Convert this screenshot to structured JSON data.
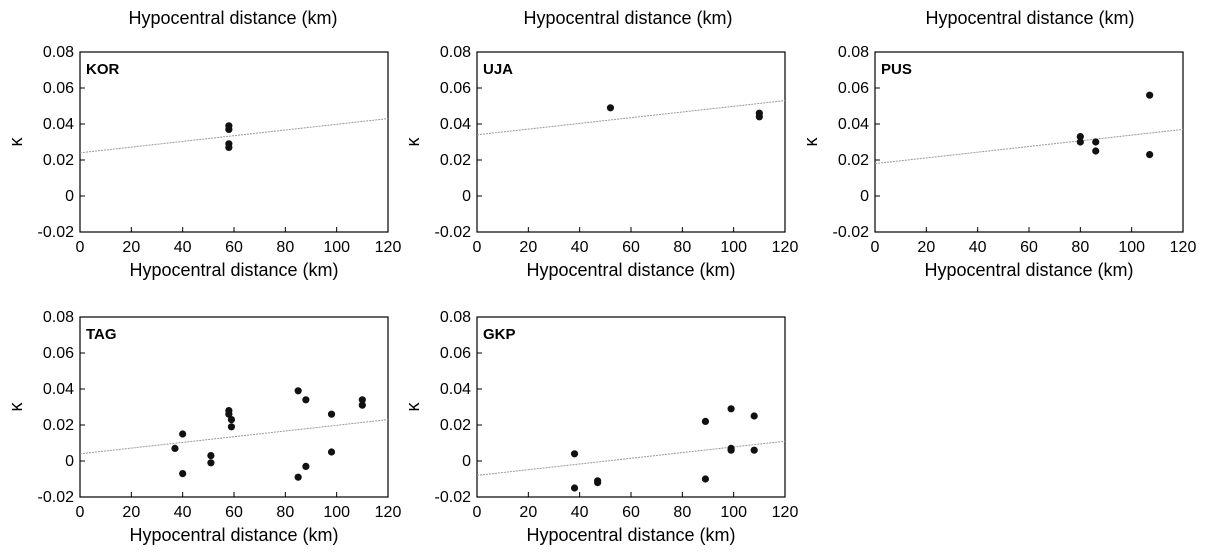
{
  "top_labels": [
    "Hypocentral distance (km)",
    "Hypocentral distance (km)",
    "Hypocentral distance (km)"
  ],
  "chart_data": [
    {
      "type": "scatter",
      "title": "KOR",
      "xlabel": "Hypocentral distance (km)",
      "ylabel": "κ",
      "xlim": [
        0,
        120
      ],
      "ylim": [
        -0.02,
        0.08
      ],
      "xticks": [
        "0",
        "20",
        "40",
        "60",
        "80",
        "100",
        "120"
      ],
      "yticks": [
        "-0.02",
        "0",
        "0.02",
        "0.04",
        "0.06",
        "0.08"
      ],
      "points": [
        [
          58,
          0.039
        ],
        [
          58,
          0.037
        ],
        [
          58,
          0.029
        ],
        [
          58,
          0.027
        ]
      ],
      "fit_line": [
        [
          0,
          0.024
        ],
        [
          120,
          0.043
        ]
      ]
    },
    {
      "type": "scatter",
      "title": "UJA",
      "xlabel": "Hypocentral distance (km)",
      "ylabel": "κ",
      "xlim": [
        0,
        120
      ],
      "ylim": [
        -0.02,
        0.08
      ],
      "xticks": [
        "0",
        "20",
        "40",
        "60",
        "80",
        "100",
        "120"
      ],
      "yticks": [
        "-0.02",
        "0",
        "0.02",
        "0.04",
        "0.06",
        "0.08"
      ],
      "points": [
        [
          52,
          0.049
        ],
        [
          110,
          0.046
        ],
        [
          110,
          0.044
        ]
      ],
      "fit_line": [
        [
          0,
          0.034
        ],
        [
          120,
          0.053
        ]
      ]
    },
    {
      "type": "scatter",
      "title": "PUS",
      "xlabel": "Hypocentral distance (km)",
      "ylabel": "κ",
      "xlim": [
        0,
        120
      ],
      "ylim": [
        -0.02,
        0.08
      ],
      "xticks": [
        "0",
        "20",
        "40",
        "60",
        "80",
        "100",
        "120"
      ],
      "yticks": [
        "-0.02",
        "0",
        "0.02",
        "0.04",
        "0.06",
        "0.08"
      ],
      "points": [
        [
          80,
          0.033
        ],
        [
          80,
          0.03
        ],
        [
          86,
          0.03
        ],
        [
          86,
          0.025
        ],
        [
          107,
          0.056
        ],
        [
          107,
          0.023
        ]
      ],
      "fit_line": [
        [
          0,
          0.018
        ],
        [
          120,
          0.037
        ]
      ]
    },
    {
      "type": "scatter",
      "title": "TAG",
      "xlabel": "Hypocentral distance (km)",
      "ylabel": "κ",
      "xlim": [
        0,
        120
      ],
      "ylim": [
        -0.02,
        0.08
      ],
      "xticks": [
        "0",
        "20",
        "40",
        "60",
        "80",
        "100",
        "120"
      ],
      "yticks": [
        "-0.02",
        "0",
        "0.02",
        "0.04",
        "0.06",
        "0.08"
      ],
      "points": [
        [
          37,
          0.007
        ],
        [
          40,
          0.015
        ],
        [
          40,
          -0.007
        ],
        [
          51,
          0.003
        ],
        [
          51,
          -0.001
        ],
        [
          58,
          0.028
        ],
        [
          58,
          0.026
        ],
        [
          59,
          0.023
        ],
        [
          59,
          0.019
        ],
        [
          85,
          0.039
        ],
        [
          88,
          0.034
        ],
        [
          85,
          -0.009
        ],
        [
          88,
          -0.003
        ],
        [
          98,
          0.026
        ],
        [
          98,
          0.005
        ],
        [
          110,
          0.034
        ],
        [
          110,
          0.031
        ]
      ],
      "fit_line": [
        [
          0,
          0.004
        ],
        [
          120,
          0.023
        ]
      ]
    },
    {
      "type": "scatter",
      "title": "GKP",
      "xlabel": "Hypocentral distance (km)",
      "ylabel": "κ",
      "xlim": [
        0,
        120
      ],
      "ylim": [
        -0.02,
        0.08
      ],
      "xticks": [
        "0",
        "20",
        "40",
        "60",
        "80",
        "100",
        "120"
      ],
      "yticks": [
        "-0.02",
        "0",
        "0.02",
        "0.04",
        "0.06",
        "0.08"
      ],
      "points": [
        [
          38,
          0.004
        ],
        [
          38,
          -0.015
        ],
        [
          47,
          -0.012
        ],
        [
          47,
          -0.011
        ],
        [
          89,
          0.022
        ],
        [
          89,
          -0.01
        ],
        [
          99,
          0.029
        ],
        [
          99,
          0.007
        ],
        [
          99,
          0.006
        ],
        [
          108,
          0.025
        ],
        [
          108,
          0.006
        ]
      ],
      "fit_line": [
        [
          0,
          -0.008
        ],
        [
          120,
          0.011
        ]
      ]
    }
  ]
}
